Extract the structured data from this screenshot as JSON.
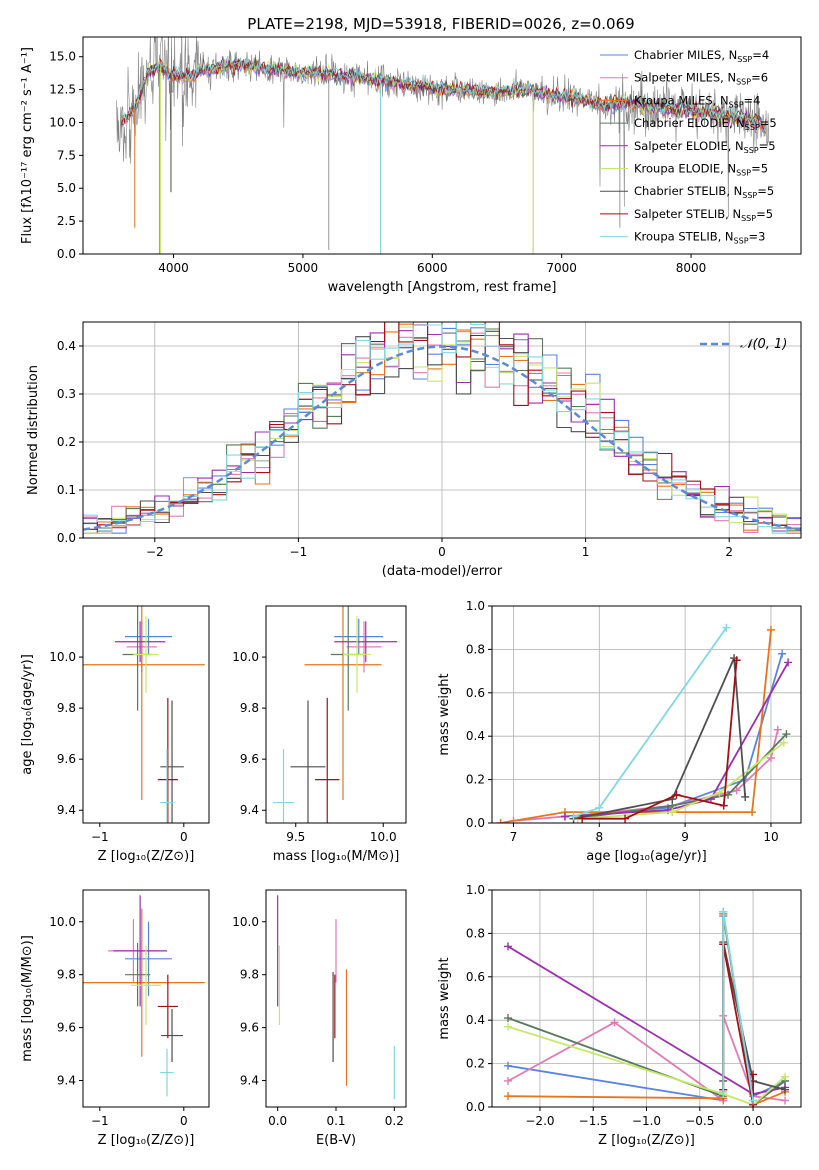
{
  "figure_title": "PLATE=2198, MJD=53918, FIBERID=0026, z=0.069",
  "colors": {
    "Chabrier MILES": "#5b84e0",
    "Salpeter MILES": "#e07bb4",
    "Kroupa MILES": "#e8741c",
    "Chabrier ELODIE": "#5a7a5e",
    "Salpeter ELODIE": "#9b2fae",
    "Kroupa ELODIE": "#c5e86a",
    "Chabrier STELIB": "#4f4f4f",
    "Salpeter STELIB": "#a50f15",
    "Kroupa STELIB": "#7fd9e0",
    "normal_curve": "#5b8bd6",
    "observed": "#808080"
  },
  "chart_data": [
    {
      "type": "line",
      "xlabel": "wavelength [Angstrom, rest frame]",
      "ylabel": "Flux [fλ10⁻¹⁷ erg cm⁻² s⁻¹ A⁻¹]",
      "xlim": [
        3300,
        8850
      ],
      "ylim": [
        0,
        16.5
      ],
      "xticks": [
        4000,
        5000,
        6000,
        7000,
        8000
      ],
      "yticks": [
        0.0,
        2.5,
        5.0,
        7.5,
        10.0,
        12.5,
        15.0
      ],
      "legend_position": "top-right",
      "legend": [
        {
          "label": "Chabrier MILES, N",
          "sub": "SSP",
          "suffix": "=4"
        },
        {
          "label": "Salpeter MILES, N",
          "sub": "SSP",
          "suffix": "=6"
        },
        {
          "label": "Kroupa MILES, N",
          "sub": "SSP",
          "suffix": "=4"
        },
        {
          "label": "Chabrier ELODIE, N",
          "sub": "SSP",
          "suffix": "=5"
        },
        {
          "label": "Salpeter ELODIE, N",
          "sub": "SSP",
          "suffix": "=5"
        },
        {
          "label": "Kroupa ELODIE, N",
          "sub": "SSP",
          "suffix": "=5"
        },
        {
          "label": "Chabrier STELIB, N",
          "sub": "SSP",
          "suffix": "=5"
        },
        {
          "label": "Salpeter STELIB, N",
          "sub": "SSP",
          "suffix": "=5"
        },
        {
          "label": "Kroupa STELIB, N",
          "sub": "SSP",
          "suffix": "=3"
        }
      ],
      "continuum_knots": {
        "x": [
          3600,
          3700,
          3800,
          3900,
          4000,
          4100,
          4200,
          4300,
          4500,
          4800,
          5000,
          5200,
          5500,
          5800,
          6000,
          6300,
          6500,
          6700,
          6900,
          7100,
          7300,
          7500,
          7700,
          8000,
          8300,
          8500,
          8600
        ],
        "y": [
          10.0,
          11.0,
          13.8,
          14.2,
          13.6,
          13.4,
          13.9,
          14.1,
          14.4,
          14.0,
          13.8,
          13.7,
          13.3,
          12.9,
          12.6,
          12.4,
          12.3,
          12.5,
          12.1,
          11.9,
          11.3,
          11.5,
          11.2,
          10.8,
          10.5,
          10.1,
          9.5
        ]
      }
    },
    {
      "type": "histogram",
      "xlabel": "(data-model)/error",
      "ylabel": "Normed distribution",
      "xlim": [
        -2.5,
        2.5
      ],
      "ylim": [
        0,
        0.45
      ],
      "xticks": [
        -2,
        -1,
        0,
        1,
        2
      ],
      "yticks": [
        0.0,
        0.1,
        0.2,
        0.3,
        0.4
      ],
      "grid": true,
      "legend_position": "top-right",
      "normal_label": "𝒩(0, 1)",
      "bin_width": 0.1
    },
    {
      "type": "scatter",
      "xlabel": "Z [log₁₀(Z/Z⊙)]",
      "ylabel": "age  [log₁₀(age/yr)]",
      "xlim": [
        -1.2,
        0.3
      ],
      "ylim": [
        9.35,
        10.2
      ],
      "xticks": [
        -1,
        0
      ],
      "yticks": [
        9.4,
        9.6,
        9.8,
        10.0
      ],
      "points": [
        {
          "series": "Chabrier MILES",
          "x": -0.42,
          "y": 10.08,
          "xerr": 0.28,
          "yerr": 0.07
        },
        {
          "series": "Salpeter MILES",
          "x": -0.5,
          "y": 10.04,
          "xerr": 0.18,
          "yerr": 0.1
        },
        {
          "series": "Kroupa MILES",
          "x": -0.5,
          "y": 9.97,
          "xerr": 0.75,
          "yerr": 0.53
        },
        {
          "series": "Chabrier ELODIE",
          "x": -0.55,
          "y": 10.01,
          "xerr": 0.18,
          "yerr": 0.22
        },
        {
          "series": "Salpeter ELODIE",
          "x": -0.52,
          "y": 10.06,
          "xerr": 0.3,
          "yerr": 0.08
        },
        {
          "series": "Kroupa ELODIE",
          "x": -0.45,
          "y": 10.01,
          "xerr": 0.15,
          "yerr": 0.15
        },
        {
          "series": "Chabrier STELIB",
          "x": -0.14,
          "y": 9.57,
          "xerr": 0.14,
          "yerr": 0.26
        },
        {
          "series": "Salpeter STELIB",
          "x": -0.19,
          "y": 9.52,
          "xerr": 0.12,
          "yerr": 0.32
        },
        {
          "series": "Kroupa STELIB",
          "x": -0.2,
          "y": 9.43,
          "xerr": 0.08,
          "yerr": 0.21
        }
      ]
    },
    {
      "type": "scatter",
      "xlabel": "mass [log₁₀(M/M⊙)]",
      "xlim": [
        9.33,
        10.13
      ],
      "ylim": [
        9.35,
        10.2
      ],
      "xticks": [
        9.5,
        10.0
      ],
      "yticks": [
        9.4,
        9.6,
        9.8,
        10.0
      ],
      "points": [
        {
          "series": "Chabrier MILES",
          "x": 9.86,
          "y": 10.08,
          "xerr": 0.14,
          "yerr": 0.07
        },
        {
          "series": "Salpeter MILES",
          "x": 9.89,
          "y": 10.04,
          "xerr": 0.1,
          "yerr": 0.1
        },
        {
          "series": "Kroupa MILES",
          "x": 9.77,
          "y": 9.97,
          "xerr": 0.22,
          "yerr": 0.53
        },
        {
          "series": "Chabrier ELODIE",
          "x": 9.8,
          "y": 10.01,
          "xerr": 0.1,
          "yerr": 0.22
        },
        {
          "series": "Salpeter ELODIE",
          "x": 9.9,
          "y": 10.06,
          "xerr": 0.18,
          "yerr": 0.08
        },
        {
          "series": "Kroupa ELODIE",
          "x": 9.85,
          "y": 10.01,
          "xerr": 0.08,
          "yerr": 0.15
        },
        {
          "series": "Chabrier STELIB",
          "x": 9.57,
          "y": 9.57,
          "xerr": 0.1,
          "yerr": 0.26
        },
        {
          "series": "Salpeter STELIB",
          "x": 9.68,
          "y": 9.52,
          "xerr": 0.07,
          "yerr": 0.32
        },
        {
          "series": "Kroupa STELIB",
          "x": 9.43,
          "y": 9.43,
          "xerr": 0.06,
          "yerr": 0.21
        }
      ]
    },
    {
      "type": "line",
      "xlabel": "age  [log₁₀(age/yr)]",
      "ylabel": "mass weight",
      "xlim": [
        6.75,
        10.35
      ],
      "ylim": [
        0,
        1.0
      ],
      "xticks": [
        7,
        8,
        9,
        10
      ],
      "yticks": [
        0.0,
        0.2,
        0.4,
        0.6,
        0.8,
        1.0
      ],
      "grid": true,
      "series": [
        {
          "name": "Chabrier MILES",
          "x": [
            7.6,
            8.8,
            9.7,
            10.13
          ],
          "y": [
            0.03,
            0.07,
            0.2,
            0.78
          ]
        },
        {
          "name": "Salpeter MILES",
          "x": [
            7.0,
            7.9,
            8.85,
            9.6,
            10.0,
            10.08
          ],
          "y": [
            0.01,
            0.04,
            0.08,
            0.15,
            0.3,
            0.43
          ]
        },
        {
          "name": "Kroupa MILES",
          "x": [
            6.85,
            7.6,
            9.78,
            10.0
          ],
          "y": [
            0.0,
            0.05,
            0.05,
            0.89
          ]
        },
        {
          "name": "Chabrier ELODIE",
          "x": [
            7.7,
            8.85,
            9.5,
            10.18
          ],
          "y": [
            0.02,
            0.08,
            0.13,
            0.41
          ]
        },
        {
          "name": "Salpeter ELODIE",
          "x": [
            7.6,
            8.8,
            9.3,
            10.2
          ],
          "y": [
            0.03,
            0.06,
            0.11,
            0.74
          ]
        },
        {
          "name": "Kroupa ELODIE",
          "x": [
            7.75,
            8.85,
            9.4,
            10.15
          ],
          "y": [
            0.02,
            0.05,
            0.14,
            0.37
          ]
        },
        {
          "name": "Chabrier STELIB",
          "x": [
            7.7,
            8.85,
            9.57,
            9.7
          ],
          "y": [
            0.02,
            0.11,
            0.76,
            0.12
          ]
        },
        {
          "name": "Salpeter STELIB",
          "x": [
            7.8,
            8.3,
            8.9,
            9.45,
            9.6
          ],
          "y": [
            0.02,
            0.02,
            0.13,
            0.08,
            0.75
          ]
        },
        {
          "name": "Kroupa STELIB",
          "x": [
            7.7,
            8.0,
            9.48
          ],
          "y": [
            0.03,
            0.07,
            0.9
          ]
        }
      ]
    },
    {
      "type": "scatter",
      "xlabel": "Z [log₁₀(Z/Z⊙)]",
      "ylabel": "mass [log₁₀(M/M⊙)]",
      "xlim": [
        -1.2,
        0.3
      ],
      "ylim": [
        9.3,
        10.12
      ],
      "xticks": [
        -1,
        0
      ],
      "yticks": [
        9.4,
        9.6,
        9.8,
        10.0
      ],
      "points": [
        {
          "series": "Chabrier MILES",
          "x": -0.42,
          "y": 9.86,
          "xerr": 0.28,
          "yerr": 0.14
        },
        {
          "series": "Salpeter MILES",
          "x": -0.6,
          "y": 9.89,
          "xerr": 0.3,
          "yerr": 0.12
        },
        {
          "series": "Kroupa MILES",
          "x": -0.5,
          "y": 9.77,
          "xerr": 0.75,
          "yerr": 0.28
        },
        {
          "series": "Chabrier ELODIE",
          "x": -0.55,
          "y": 9.8,
          "xerr": 0.15,
          "yerr": 0.12
        },
        {
          "series": "Salpeter ELODIE",
          "x": -0.52,
          "y": 9.89,
          "xerr": 0.32,
          "yerr": 0.21
        },
        {
          "series": "Kroupa ELODIE",
          "x": -0.45,
          "y": 9.76,
          "xerr": 0.18,
          "yerr": 0.15
        },
        {
          "series": "Chabrier STELIB",
          "x": -0.14,
          "y": 9.57,
          "xerr": 0.13,
          "yerr": 0.1
        },
        {
          "series": "Salpeter STELIB",
          "x": -0.19,
          "y": 9.68,
          "xerr": 0.12,
          "yerr": 0.12
        },
        {
          "series": "Kroupa STELIB",
          "x": -0.2,
          "y": 9.43,
          "xerr": 0.08,
          "yerr": 0.09
        }
      ]
    },
    {
      "type": "scatter",
      "xlabel": "E(B-V)",
      "xlim": [
        -0.02,
        0.22
      ],
      "ylim": [
        9.3,
        10.12
      ],
      "xticks": [
        0.0,
        0.1,
        0.2
      ],
      "yticks": [
        9.4,
        9.6,
        9.8,
        10.0
      ],
      "points": [
        {
          "series": "Salpeter ELODIE",
          "x": 0.0,
          "y": 9.89,
          "yerr": 0.21
        },
        {
          "series": "Kroupa ELODIE",
          "x": 0.003,
          "y": 9.76,
          "yerr": 0.15
        },
        {
          "series": "Salpeter MILES",
          "x": 0.1,
          "y": 9.89,
          "yerr": 0.12
        },
        {
          "series": "Chabrier STELIB",
          "x": 0.095,
          "y": 9.64,
          "yerr": 0.17
        },
        {
          "series": "Salpeter STELIB",
          "x": 0.098,
          "y": 9.68,
          "yerr": 0.12
        },
        {
          "series": "Kroupa MILES",
          "x": 0.118,
          "y": 9.6,
          "yerr": 0.22
        },
        {
          "series": "Kroupa STELIB",
          "x": 0.2,
          "y": 9.43,
          "yerr": 0.1
        }
      ]
    },
    {
      "type": "line",
      "xlabel": "Z [log₁₀(Z/Z⊙)]",
      "ylabel": "mass weight",
      "xlim": [
        -2.45,
        0.45
      ],
      "ylim": [
        0,
        1.0
      ],
      "xticks": [
        -2.0,
        -1.5,
        -1.0,
        -0.5,
        0.0
      ],
      "yticks": [
        0.0,
        0.2,
        0.4,
        0.6,
        0.8,
        1.0
      ],
      "grid": true,
      "series": [
        {
          "name": "Chabrier MILES",
          "x": [
            -2.3,
            -0.28,
            -0.28,
            0.0,
            0.3
          ],
          "y": [
            0.19,
            0.03,
            0.88,
            0.05,
            0.12
          ]
        },
        {
          "name": "Salpeter MILES",
          "x": [
            -2.3,
            -1.3,
            -0.28,
            -0.28,
            0.0,
            0.3
          ],
          "y": [
            0.12,
            0.39,
            0.03,
            0.42,
            0.05,
            0.03
          ]
        },
        {
          "name": "Kroupa MILES",
          "x": [
            -2.3,
            -0.28,
            -0.28,
            0.0,
            0.3
          ],
          "y": [
            0.05,
            0.04,
            0.89,
            0.01,
            0.07
          ]
        },
        {
          "name": "Chabrier ELODIE",
          "x": [
            -2.3,
            -0.28,
            -0.28,
            0.0,
            0.3
          ],
          "y": [
            0.41,
            0.05,
            0.9,
            0.01,
            0.12
          ]
        },
        {
          "name": "Salpeter ELODIE",
          "x": [
            -2.3,
            0.0,
            0.3
          ],
          "y": [
            0.74,
            0.06,
            0.09
          ]
        },
        {
          "name": "Kroupa ELODIE",
          "x": [
            -2.3,
            -0.28,
            0.0,
            0.3
          ],
          "y": [
            0.37,
            0.06,
            0.01,
            0.14
          ]
        },
        {
          "name": "Chabrier STELIB",
          "x": [
            -0.28,
            -0.28,
            0.0,
            0.3
          ],
          "y": [
            0.12,
            0.76,
            0.12,
            0.08
          ]
        },
        {
          "name": "Salpeter STELIB",
          "x": [
            -0.28,
            -0.28,
            0.0,
            0.0
          ],
          "y": [
            0.08,
            0.75,
            0.01,
            0.15
          ]
        },
        {
          "name": "Kroupa STELIB",
          "x": [
            -0.28,
            -0.28,
            0.0
          ],
          "y": [
            0.07,
            0.9,
            0.03
          ]
        }
      ]
    }
  ]
}
